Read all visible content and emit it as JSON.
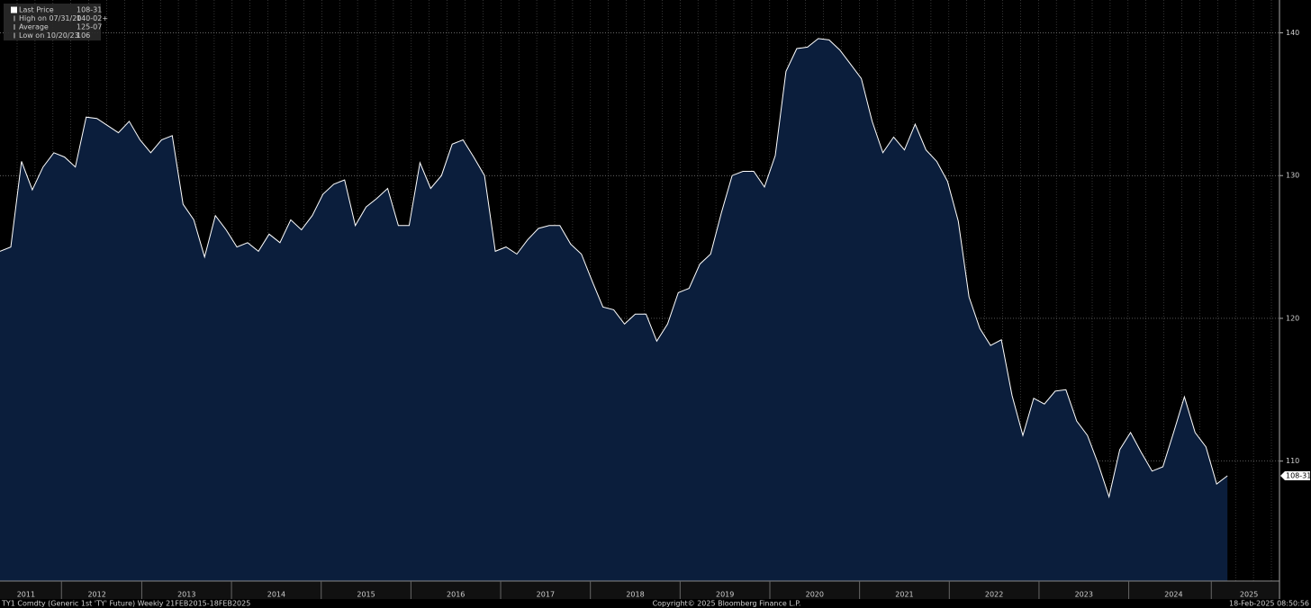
{
  "chart_data": {
    "type": "area",
    "legend": [
      {
        "label": "Last Price",
        "value": "108-31"
      },
      {
        "label": "High on 07/31/20",
        "value": "140-02+"
      },
      {
        "label": "Average",
        "value": "125-07"
      },
      {
        "label": "Low on 10/20/23",
        "value": "106"
      }
    ],
    "footer": {
      "left": "TY1 Comdty (Generic 1st 'TY' Future)  Weekly 21FEB2015-18FEB2025",
      "center": "Copyright© 2025 Bloomberg Finance L.P.",
      "right": "18-Feb-2025 08:50:56"
    },
    "x": [
      2011.42,
      2011.54,
      2011.66,
      2011.78,
      2011.9,
      2012.02,
      2012.14,
      2012.26,
      2012.38,
      2012.5,
      2012.62,
      2012.74,
      2012.86,
      2012.98,
      2013.1,
      2013.22,
      2013.34,
      2013.46,
      2013.58,
      2013.7,
      2013.82,
      2013.94,
      2014.06,
      2014.18,
      2014.3,
      2014.42,
      2014.54,
      2014.66,
      2014.78,
      2014.9,
      2015.02,
      2015.14,
      2015.26,
      2015.38,
      2015.5,
      2015.62,
      2015.74,
      2015.86,
      2015.98,
      2016.1,
      2016.22,
      2016.34,
      2016.46,
      2016.58,
      2016.7,
      2016.82,
      2016.94,
      2017.06,
      2017.18,
      2017.3,
      2017.42,
      2017.54,
      2017.66,
      2017.78,
      2017.9,
      2018.02,
      2018.14,
      2018.26,
      2018.38,
      2018.5,
      2018.62,
      2018.74,
      2018.86,
      2018.98,
      2019.1,
      2019.22,
      2019.34,
      2019.46,
      2019.58,
      2019.7,
      2019.82,
      2019.94,
      2020.06,
      2020.18,
      2020.3,
      2020.42,
      2020.54,
      2020.66,
      2020.78,
      2020.9,
      2021.02,
      2021.14,
      2021.26,
      2021.38,
      2021.5,
      2021.62,
      2021.74,
      2021.86,
      2021.98,
      2022.1,
      2022.22,
      2022.34,
      2022.46,
      2022.58,
      2022.7,
      2022.82,
      2022.94,
      2023.06,
      2023.18,
      2023.3,
      2023.42,
      2023.54,
      2023.66,
      2023.78,
      2023.9,
      2024.02,
      2024.14,
      2024.26,
      2024.38,
      2024.5,
      2024.62,
      2024.74,
      2024.86,
      2024.98,
      2025.1
    ],
    "series": [
      {
        "color": "#ffffff",
        "fill": "#0b1e3c",
        "values": [
          124.7,
          125.0,
          131.0,
          129.0,
          130.6,
          131.6,
          131.3,
          130.6,
          134.1,
          134.0,
          133.5,
          133.0,
          133.8,
          132.5,
          131.6,
          132.5,
          132.8,
          128.0,
          126.9,
          124.3,
          127.2,
          126.2,
          125.0,
          125.3,
          124.7,
          125.9,
          125.3,
          126.9,
          126.2,
          127.2,
          128.7,
          129.4,
          129.7,
          126.5,
          127.8,
          128.4,
          129.1,
          126.5,
          126.5,
          130.9,
          129.1,
          130.0,
          132.2,
          132.5,
          131.3,
          130.0,
          124.7,
          125.0,
          124.5,
          125.5,
          126.3,
          126.5,
          126.5,
          125.2,
          124.5,
          122.6,
          120.8,
          120.6,
          119.6,
          120.3,
          120.3,
          118.4,
          119.6,
          121.8,
          122.1,
          123.8,
          124.5,
          127.4,
          130.0,
          130.3,
          130.3,
          129.2,
          131.4,
          137.3,
          138.9,
          139.0,
          139.6,
          139.5,
          138.8,
          137.8,
          136.8,
          133.8,
          131.6,
          132.7,
          131.8,
          133.6,
          131.8,
          131.0,
          129.6,
          126.8,
          121.5,
          119.3,
          118.1,
          118.5,
          114.6,
          111.8,
          114.4,
          114.0,
          114.9,
          115.0,
          112.8,
          111.8,
          109.8,
          107.5,
          110.8,
          112.0,
          110.6,
          109.3,
          109.6,
          112.0,
          114.5,
          112.0,
          111.0,
          108.4,
          108.97
        ]
      }
    ],
    "xlim": [
      2011.42,
      2025.67
    ],
    "xticks": [
      {
        "value": 2011.71,
        "label": "2011"
      },
      {
        "value": 2012.5,
        "label": "2012"
      },
      {
        "value": 2013.5,
        "label": "2013"
      },
      {
        "value": 2014.5,
        "label": "2014"
      },
      {
        "value": 2015.5,
        "label": "2015"
      },
      {
        "value": 2016.5,
        "label": "2016"
      },
      {
        "value": 2017.5,
        "label": "2017"
      },
      {
        "value": 2018.5,
        "label": "2018"
      },
      {
        "value": 2019.5,
        "label": "2019"
      },
      {
        "value": 2020.5,
        "label": "2020"
      },
      {
        "value": 2021.5,
        "label": "2021"
      },
      {
        "value": 2022.5,
        "label": "2022"
      },
      {
        "value": 2023.5,
        "label": "2023"
      },
      {
        "value": 2024.5,
        "label": "2024"
      },
      {
        "value": 2025.34,
        "label": "2025"
      }
    ],
    "ylim": [
      101.6,
      142.3
    ],
    "yticks": [
      110,
      120,
      130,
      140
    ],
    "grid": true
  }
}
